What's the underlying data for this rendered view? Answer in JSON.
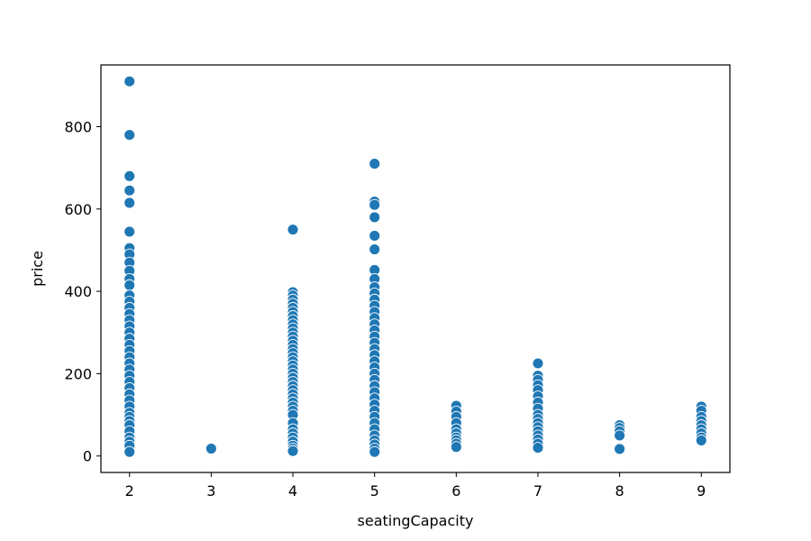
{
  "chart_data": {
    "type": "scatter",
    "title": "",
    "xlabel": "seatingCapacity",
    "ylabel": "price",
    "xlim": [
      1.65,
      9.35
    ],
    "ylim": [
      -40,
      950
    ],
    "xticks": [
      2,
      3,
      4,
      5,
      6,
      7,
      8,
      9
    ],
    "yticks": [
      0,
      200,
      400,
      600,
      800
    ],
    "grid": false,
    "legend": false,
    "marker_color": "#1f77b4",
    "marker_edge_color": "#ffffff",
    "points": [
      {
        "x": 2,
        "y": 910
      },
      {
        "x": 2,
        "y": 780
      },
      {
        "x": 2,
        "y": 680
      },
      {
        "x": 2,
        "y": 645
      },
      {
        "x": 2,
        "y": 615
      },
      {
        "x": 2,
        "y": 545
      },
      {
        "x": 2,
        "y": 505
      },
      {
        "x": 2,
        "y": 490
      },
      {
        "x": 2,
        "y": 470
      },
      {
        "x": 2,
        "y": 450
      },
      {
        "x": 2,
        "y": 430
      },
      {
        "x": 2,
        "y": 415
      },
      {
        "x": 2,
        "y": 390
      },
      {
        "x": 2,
        "y": 375
      },
      {
        "x": 2,
        "y": 360
      },
      {
        "x": 2,
        "y": 345
      },
      {
        "x": 2,
        "y": 330
      },
      {
        "x": 2,
        "y": 315
      },
      {
        "x": 2,
        "y": 300
      },
      {
        "x": 2,
        "y": 285
      },
      {
        "x": 2,
        "y": 270
      },
      {
        "x": 2,
        "y": 255
      },
      {
        "x": 2,
        "y": 240
      },
      {
        "x": 2,
        "y": 225
      },
      {
        "x": 2,
        "y": 210
      },
      {
        "x": 2,
        "y": 195
      },
      {
        "x": 2,
        "y": 180
      },
      {
        "x": 2,
        "y": 165
      },
      {
        "x": 2,
        "y": 150
      },
      {
        "x": 2,
        "y": 135
      },
      {
        "x": 2,
        "y": 120
      },
      {
        "x": 2,
        "y": 105
      },
      {
        "x": 2,
        "y": 95
      },
      {
        "x": 2,
        "y": 85
      },
      {
        "x": 2,
        "y": 75
      },
      {
        "x": 2,
        "y": 60
      },
      {
        "x": 2,
        "y": 45
      },
      {
        "x": 2,
        "y": 35
      },
      {
        "x": 2,
        "y": 25
      },
      {
        "x": 2,
        "y": 10
      },
      {
        "x": 3,
        "y": 18
      },
      {
        "x": 4,
        "y": 550
      },
      {
        "x": 4,
        "y": 398
      },
      {
        "x": 4,
        "y": 390
      },
      {
        "x": 4,
        "y": 380
      },
      {
        "x": 4,
        "y": 370
      },
      {
        "x": 4,
        "y": 360
      },
      {
        "x": 4,
        "y": 350
      },
      {
        "x": 4,
        "y": 340
      },
      {
        "x": 4,
        "y": 330
      },
      {
        "x": 4,
        "y": 320
      },
      {
        "x": 4,
        "y": 310
      },
      {
        "x": 4,
        "y": 300
      },
      {
        "x": 4,
        "y": 290
      },
      {
        "x": 4,
        "y": 280
      },
      {
        "x": 4,
        "y": 270
      },
      {
        "x": 4,
        "y": 260
      },
      {
        "x": 4,
        "y": 250
      },
      {
        "x": 4,
        "y": 240
      },
      {
        "x": 4,
        "y": 230
      },
      {
        "x": 4,
        "y": 220
      },
      {
        "x": 4,
        "y": 210
      },
      {
        "x": 4,
        "y": 200
      },
      {
        "x": 4,
        "y": 190
      },
      {
        "x": 4,
        "y": 180
      },
      {
        "x": 4,
        "y": 170
      },
      {
        "x": 4,
        "y": 160
      },
      {
        "x": 4,
        "y": 150
      },
      {
        "x": 4,
        "y": 140
      },
      {
        "x": 4,
        "y": 130
      },
      {
        "x": 4,
        "y": 120
      },
      {
        "x": 4,
        "y": 110
      },
      {
        "x": 4,
        "y": 100
      },
      {
        "x": 4,
        "y": 80
      },
      {
        "x": 4,
        "y": 65
      },
      {
        "x": 4,
        "y": 55
      },
      {
        "x": 4,
        "y": 45
      },
      {
        "x": 4,
        "y": 35
      },
      {
        "x": 4,
        "y": 25
      },
      {
        "x": 4,
        "y": 18
      },
      {
        "x": 4,
        "y": 12
      },
      {
        "x": 5,
        "y": 710
      },
      {
        "x": 5,
        "y": 618
      },
      {
        "x": 5,
        "y": 610
      },
      {
        "x": 5,
        "y": 580
      },
      {
        "x": 5,
        "y": 535
      },
      {
        "x": 5,
        "y": 502
      },
      {
        "x": 5,
        "y": 452
      },
      {
        "x": 5,
        "y": 430
      },
      {
        "x": 5,
        "y": 410
      },
      {
        "x": 5,
        "y": 395
      },
      {
        "x": 5,
        "y": 380
      },
      {
        "x": 5,
        "y": 365
      },
      {
        "x": 5,
        "y": 350
      },
      {
        "x": 5,
        "y": 335
      },
      {
        "x": 5,
        "y": 320
      },
      {
        "x": 5,
        "y": 305
      },
      {
        "x": 5,
        "y": 290
      },
      {
        "x": 5,
        "y": 275
      },
      {
        "x": 5,
        "y": 260
      },
      {
        "x": 5,
        "y": 245
      },
      {
        "x": 5,
        "y": 230
      },
      {
        "x": 5,
        "y": 215
      },
      {
        "x": 5,
        "y": 200
      },
      {
        "x": 5,
        "y": 185
      },
      {
        "x": 5,
        "y": 170
      },
      {
        "x": 5,
        "y": 155
      },
      {
        "x": 5,
        "y": 140
      },
      {
        "x": 5,
        "y": 125
      },
      {
        "x": 5,
        "y": 110
      },
      {
        "x": 5,
        "y": 95
      },
      {
        "x": 5,
        "y": 80
      },
      {
        "x": 5,
        "y": 65
      },
      {
        "x": 5,
        "y": 50
      },
      {
        "x": 5,
        "y": 38
      },
      {
        "x": 5,
        "y": 28
      },
      {
        "x": 5,
        "y": 18
      },
      {
        "x": 5,
        "y": 10
      },
      {
        "x": 6,
        "y": 122
      },
      {
        "x": 6,
        "y": 108
      },
      {
        "x": 6,
        "y": 95
      },
      {
        "x": 6,
        "y": 80
      },
      {
        "x": 6,
        "y": 65
      },
      {
        "x": 6,
        "y": 55
      },
      {
        "x": 6,
        "y": 45
      },
      {
        "x": 6,
        "y": 38
      },
      {
        "x": 6,
        "y": 30
      },
      {
        "x": 6,
        "y": 22
      },
      {
        "x": 7,
        "y": 225
      },
      {
        "x": 7,
        "y": 195
      },
      {
        "x": 7,
        "y": 185
      },
      {
        "x": 7,
        "y": 172
      },
      {
        "x": 7,
        "y": 160
      },
      {
        "x": 7,
        "y": 145
      },
      {
        "x": 7,
        "y": 130
      },
      {
        "x": 7,
        "y": 115
      },
      {
        "x": 7,
        "y": 100
      },
      {
        "x": 7,
        "y": 90
      },
      {
        "x": 7,
        "y": 80
      },
      {
        "x": 7,
        "y": 70
      },
      {
        "x": 7,
        "y": 60
      },
      {
        "x": 7,
        "y": 50
      },
      {
        "x": 7,
        "y": 40
      },
      {
        "x": 7,
        "y": 30
      },
      {
        "x": 7,
        "y": 20
      },
      {
        "x": 8,
        "y": 75
      },
      {
        "x": 8,
        "y": 68
      },
      {
        "x": 8,
        "y": 60
      },
      {
        "x": 8,
        "y": 50
      },
      {
        "x": 8,
        "y": 17
      },
      {
        "x": 9,
        "y": 120
      },
      {
        "x": 9,
        "y": 110
      },
      {
        "x": 9,
        "y": 95
      },
      {
        "x": 9,
        "y": 85
      },
      {
        "x": 9,
        "y": 75
      },
      {
        "x": 9,
        "y": 65
      },
      {
        "x": 9,
        "y": 55
      },
      {
        "x": 9,
        "y": 45
      },
      {
        "x": 9,
        "y": 38
      }
    ]
  }
}
